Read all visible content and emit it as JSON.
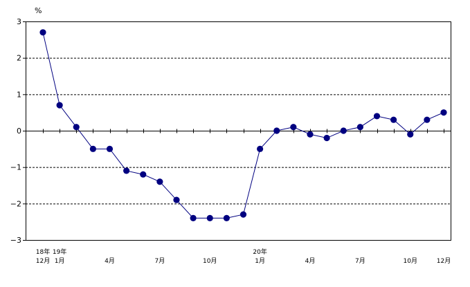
{
  "chart_data": {
    "type": "line",
    "unit_label": "%",
    "ylim": [
      -3,
      3
    ],
    "yticks": [
      3,
      2,
      1,
      0,
      -1,
      -2,
      -3
    ],
    "ytick_labels": [
      "3",
      "2",
      "1",
      "0",
      "−1",
      "−2",
      "−3"
    ],
    "grid": "dashed horizontal at y = 2, 1, -1, -2",
    "x": [
      "2006-12",
      "2007-01",
      "2007-02",
      "2007-03",
      "2007-04",
      "2007-05",
      "2007-06",
      "2007-07",
      "2007-08",
      "2007-09",
      "2007-10",
      "2007-11",
      "2007-12",
      "2008-01",
      "2008-02",
      "2008-03",
      "2008-04",
      "2008-05",
      "2008-06",
      "2008-07",
      "2008-08",
      "2008-09",
      "2008-10",
      "2008-11",
      "2008-12"
    ],
    "series": [
      {
        "values": [
          2.7,
          0.7,
          0.1,
          -0.5,
          -0.5,
          -1.1,
          -1.2,
          -1.4,
          -1.9,
          -2.4,
          -2.4,
          -2.4,
          -2.3,
          -0.5,
          0.0,
          0.1,
          -0.1,
          -0.2,
          0.0,
          0.1,
          0.4,
          0.3,
          -0.1,
          0.3,
          0.5
        ],
        "color": "#000080"
      }
    ],
    "x_tick_labels": [
      {
        "index": 0,
        "lines": [
          "18年",
          "12月"
        ]
      },
      {
        "index": 1,
        "lines": [
          "19年",
          "1月"
        ]
      },
      {
        "index": 4,
        "lines": [
          "",
          "4月"
        ]
      },
      {
        "index": 7,
        "lines": [
          "",
          "7月"
        ]
      },
      {
        "index": 10,
        "lines": [
          "",
          "10月"
        ]
      },
      {
        "index": 13,
        "lines": [
          "20年",
          "1月"
        ]
      },
      {
        "index": 16,
        "lines": [
          "",
          "4月"
        ]
      },
      {
        "index": 19,
        "lines": [
          "",
          "7月"
        ]
      },
      {
        "index": 22,
        "lines": [
          "",
          "10月"
        ]
      },
      {
        "index": 24,
        "lines": [
          "",
          "12月"
        ]
      }
    ]
  }
}
